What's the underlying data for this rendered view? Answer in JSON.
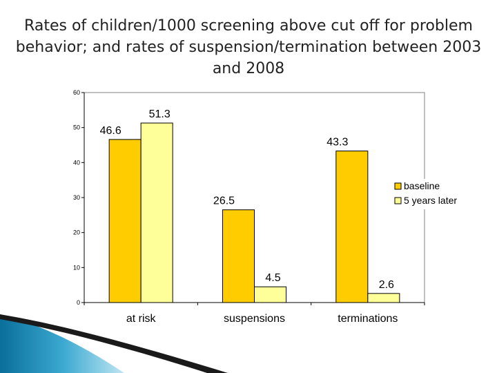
{
  "title": "Rates of children/1000 screening above cut off for problem behavior; and rates of suspension/termination between 2003 and 2008",
  "chart_data": {
    "type": "bar",
    "categories": [
      "at risk",
      "suspensions",
      "terminations"
    ],
    "series": [
      {
        "name": "baseline",
        "values": [
          46.6,
          26.5,
          43.3
        ],
        "color": "#FFCC00"
      },
      {
        "name": "5 years later",
        "values": [
          51.3,
          4.5,
          2.6
        ],
        "color": "#FFFF99"
      }
    ],
    "data_labels": [
      [
        "46.6",
        "26.5",
        "43.3"
      ],
      [
        "51.3",
        "4.5",
        "2.6"
      ]
    ],
    "ylim": [
      0,
      60
    ],
    "yticks": [
      0,
      10,
      20,
      30,
      40,
      50,
      60
    ],
    "grid": false,
    "legend_position": "right"
  }
}
